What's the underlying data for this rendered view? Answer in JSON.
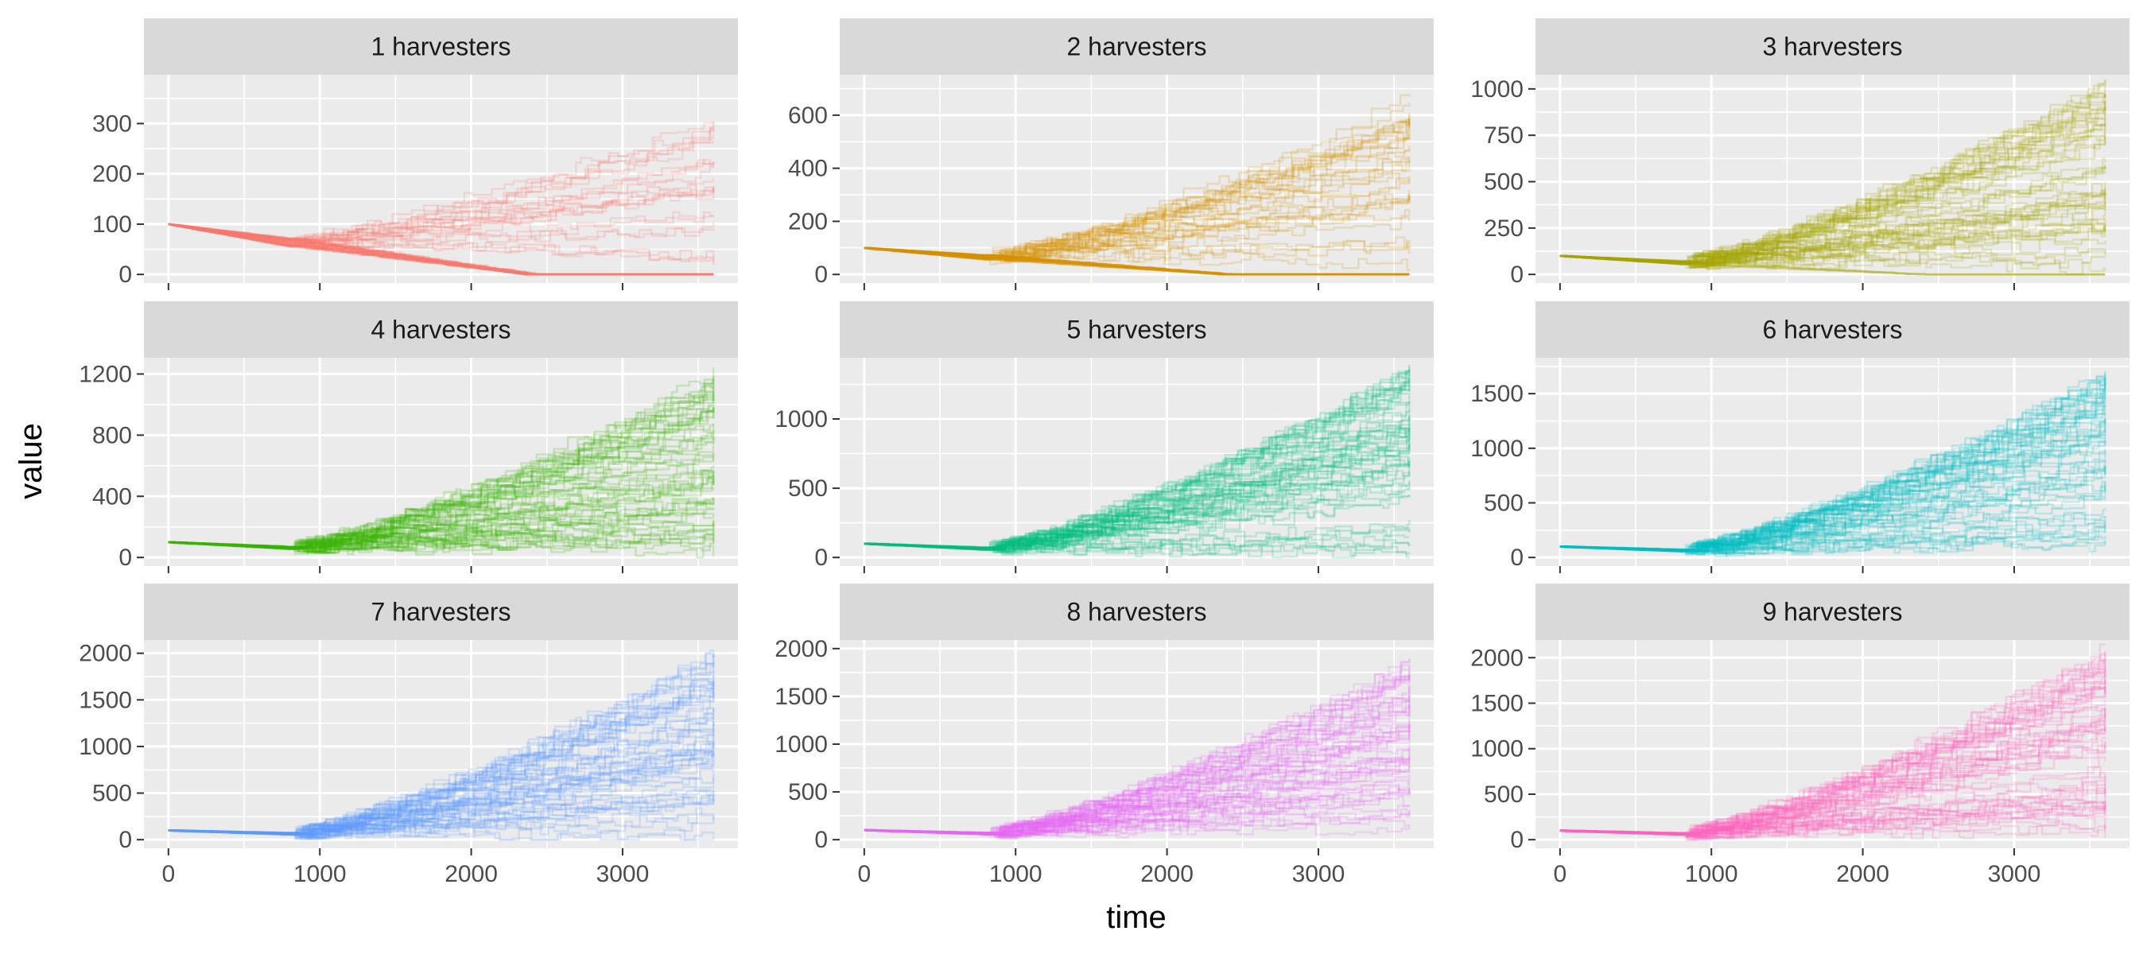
{
  "chart_data": {
    "type": "line",
    "layout": "facet-grid-3x3",
    "xlabel": "time",
    "ylabel": "value",
    "xlim": [
      0,
      3600
    ],
    "x_ticks": [
      0,
      1000,
      2000,
      3000
    ],
    "x_tick_labels": [
      "0",
      "1000",
      "2000",
      "3000"
    ],
    "start_value": 100,
    "drop_start_time": 800,
    "trajectories_per_panel": 60,
    "line_opacity": 0.2,
    "background_color": "#EBEBEB",
    "strip_color": "#D9D9D9",
    "grid_color": "#FFFFFF",
    "panels": [
      {
        "label": "1 harvesters",
        "color": "#F8766D",
        "ylim": [
          0,
          380
        ],
        "y_ticks": [
          0,
          100,
          200,
          300
        ],
        "y_tick_labels": [
          "0",
          "100",
          "200",
          "300"
        ],
        "end_max": 320,
        "extinct_fraction": 0.55
      },
      {
        "label": "2 harvesters",
        "color": "#D89000",
        "ylim": [
          0,
          720
        ],
        "y_ticks": [
          0,
          200,
          400,
          600
        ],
        "y_tick_labels": [
          "0",
          "200",
          "400",
          "600"
        ],
        "end_max": 720,
        "extinct_fraction": 0.3
      },
      {
        "label": "3 harvesters",
        "color": "#A3A500",
        "ylim": [
          0,
          1030
        ],
        "y_ticks": [
          0,
          250,
          500,
          750,
          1000
        ],
        "y_tick_labels": [
          "0",
          "250",
          "500",
          "750",
          "1000"
        ],
        "end_max": 1030,
        "extinct_fraction": 0.05
      },
      {
        "label": "4 harvesters",
        "color": "#39B600",
        "ylim": [
          0,
          1250
        ],
        "y_ticks": [
          0,
          400,
          800,
          1200
        ],
        "y_tick_labels": [
          "0",
          "400",
          "800",
          "1200"
        ],
        "end_max": 1230,
        "extinct_fraction": 0.0
      },
      {
        "label": "5 harvesters",
        "color": "#00BF7D",
        "ylim": [
          0,
          1380
        ],
        "y_ticks": [
          0,
          500,
          1000
        ],
        "y_tick_labels": [
          "0",
          "500",
          "1000"
        ],
        "end_max": 1350,
        "extinct_fraction": 0.0
      },
      {
        "label": "6 harvesters",
        "color": "#00BFC4",
        "ylim": [
          0,
          1750
        ],
        "y_ticks": [
          0,
          500,
          1000,
          1500
        ],
        "y_tick_labels": [
          "0",
          "500",
          "1000",
          "1500"
        ],
        "end_max": 1700,
        "extinct_fraction": 0.0
      },
      {
        "label": "7 harvesters",
        "color": "#619CFF",
        "ylim": [
          0,
          2050
        ],
        "y_ticks": [
          0,
          500,
          1000,
          1500,
          2000
        ],
        "y_tick_labels": [
          "0",
          "500",
          "1000",
          "1500",
          "2000"
        ],
        "end_max": 2050,
        "extinct_fraction": 0.0
      },
      {
        "label": "8 harvesters",
        "color": "#E76BF3",
        "ylim": [
          0,
          2000
        ],
        "y_ticks": [
          0,
          500,
          1000,
          1500,
          2000
        ],
        "y_tick_labels": [
          "0",
          "500",
          "1000",
          "1500",
          "2000"
        ],
        "end_max": 1900,
        "extinct_fraction": 0.0
      },
      {
        "label": "9 harvesters",
        "color": "#FF62BC",
        "ylim": [
          0,
          2100
        ],
        "y_ticks": [
          0,
          500,
          1000,
          1500,
          2000
        ],
        "y_tick_labels": [
          "0",
          "500",
          "1000",
          "1500",
          "2000"
        ],
        "end_max": 2100,
        "extinct_fraction": 0.0
      }
    ]
  }
}
